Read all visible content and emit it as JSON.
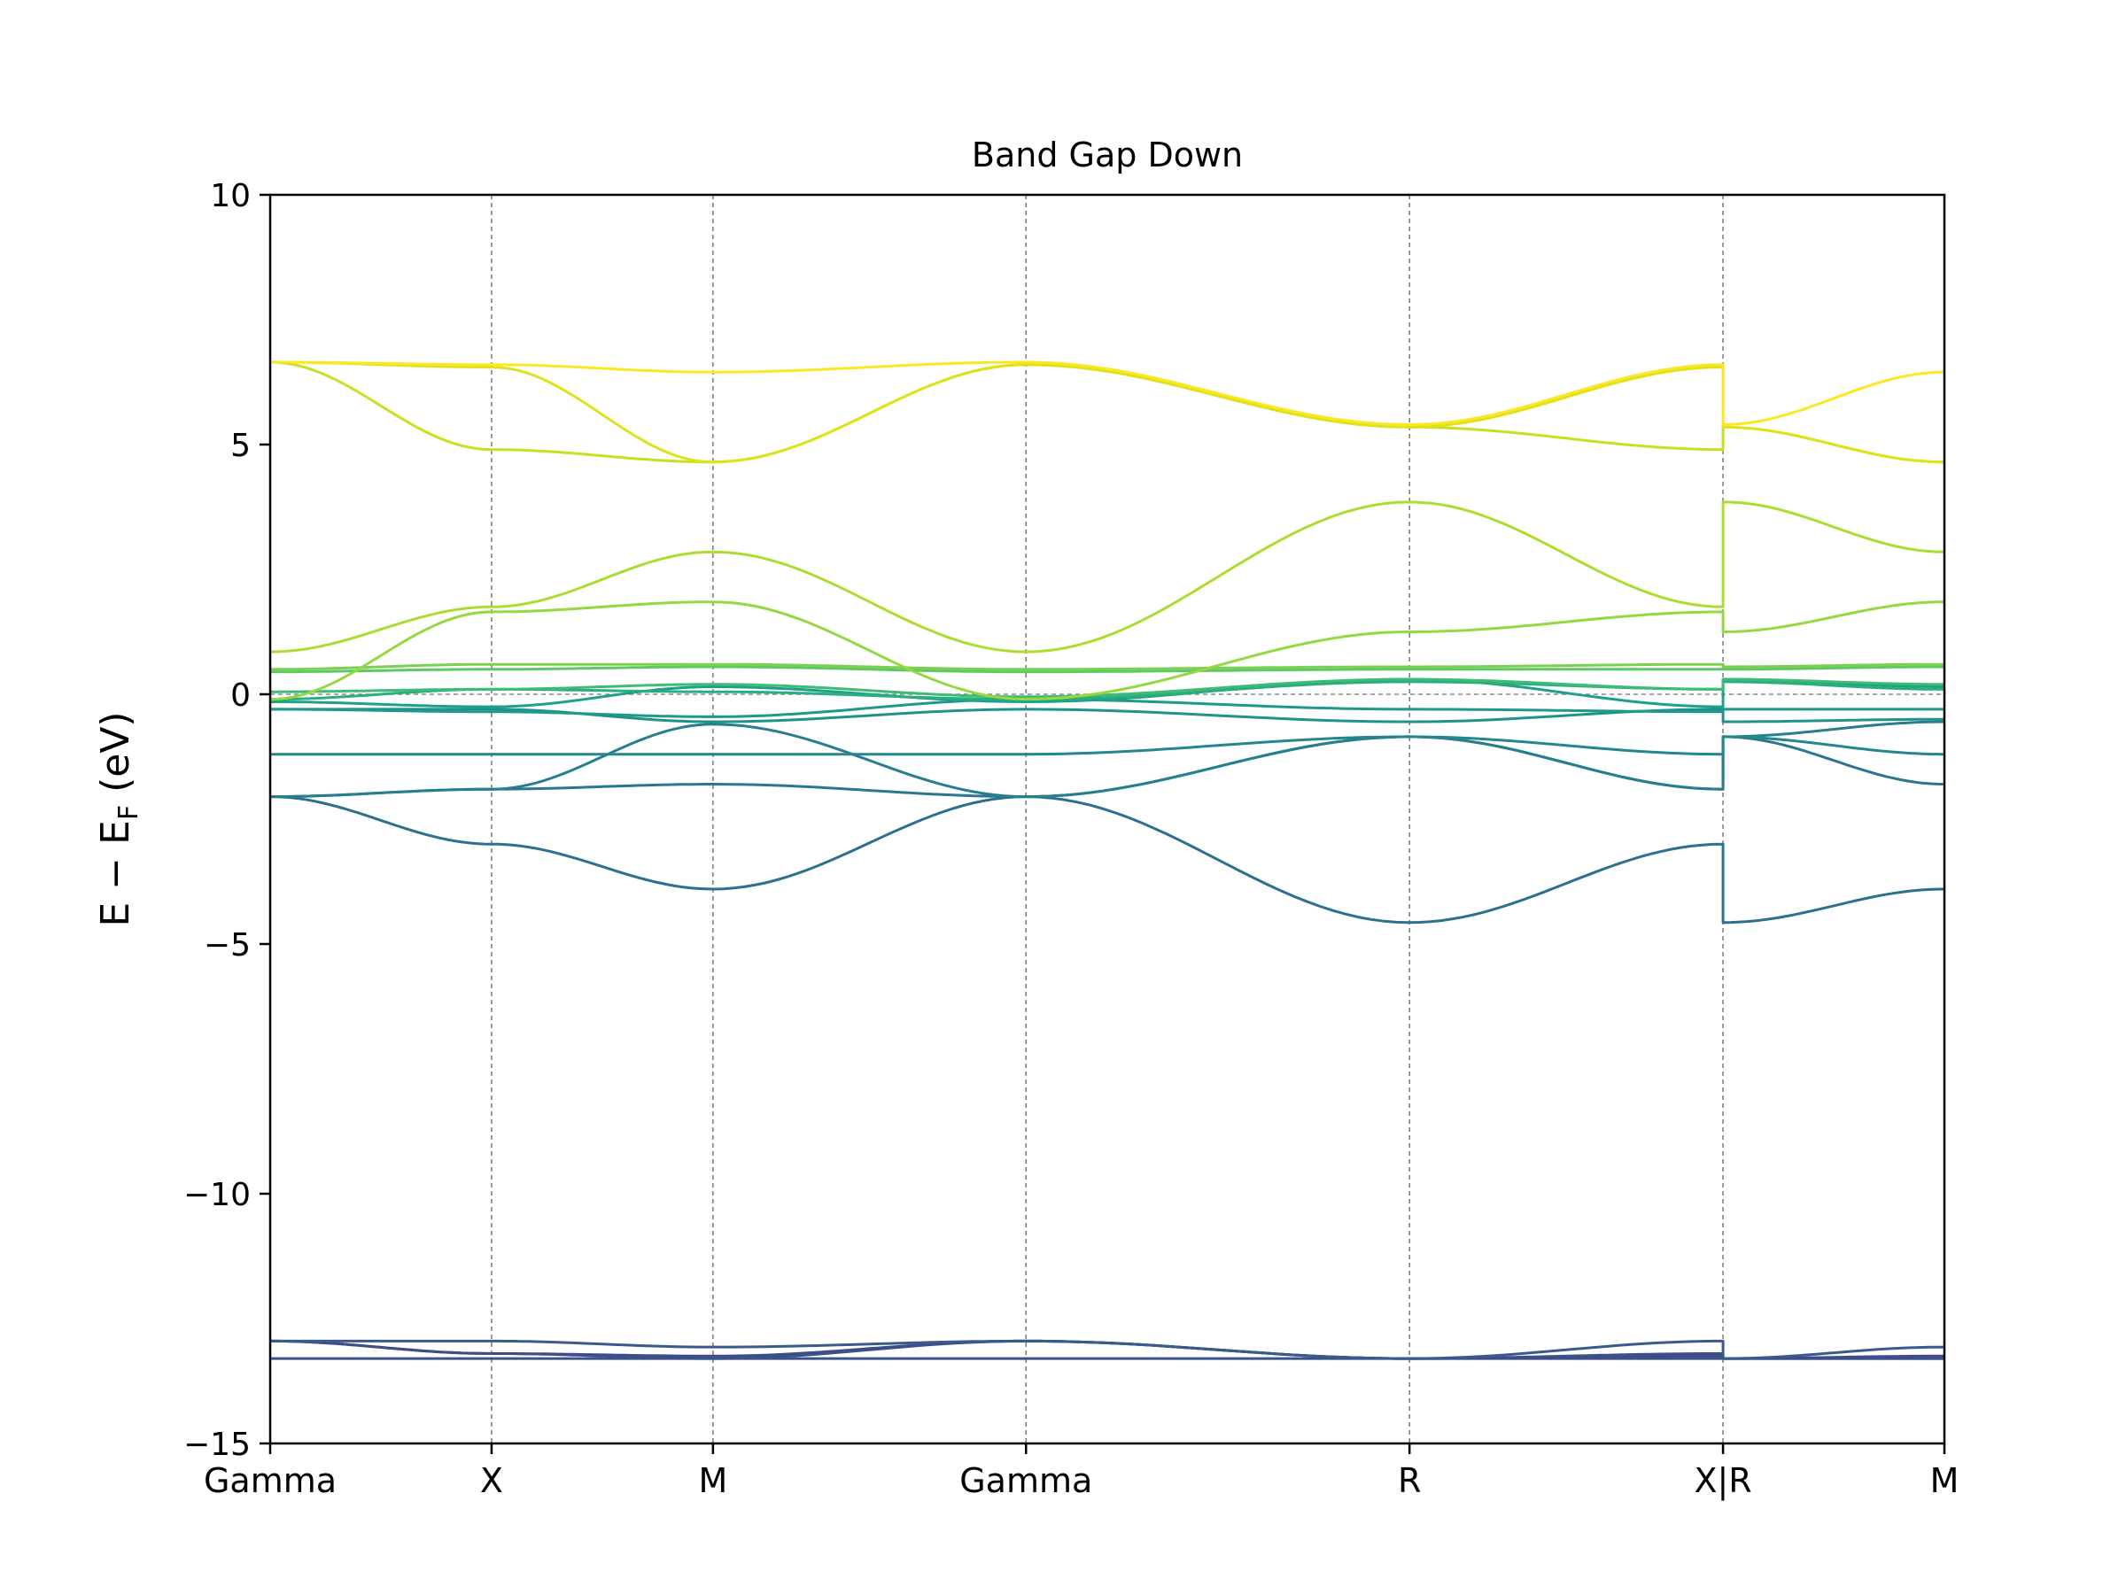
{
  "chart_data": {
    "type": "line",
    "title": "Band Gap Down",
    "ylabel_main": "E − E",
    "ylabel_sub": "F",
    "ylabel_unit": " (eV)",
    "ylim": [
      -15,
      10
    ],
    "yticks": [
      -15,
      -10,
      -5,
      0,
      5,
      10
    ],
    "ytick_labels": [
      "−15",
      "−10",
      "−5",
      "0",
      "5",
      "10"
    ],
    "kpoint_labels": [
      "Gamma",
      "X",
      "M",
      "Gamma",
      "R",
      "X|R",
      "M"
    ],
    "kpoint_x": [
      0,
      0.5,
      1.0,
      1.707,
      2.573,
      3.281,
      3.781
    ],
    "fermi_level": 0,
    "colormap": "viridis",
    "grid": false,
    "series": [
      {
        "color": "#3b528b",
        "points": [
          [
            0,
            -13.3
          ],
          [
            0.5,
            -13.3
          ],
          [
            1.0,
            -13.3
          ],
          [
            1.707,
            -13.3
          ],
          [
            2.573,
            -13.3
          ],
          [
            3.281,
            -13.3
          ],
          [
            3.281,
            -13.3
          ],
          [
            3.781,
            -13.3
          ]
        ]
      },
      {
        "color": "#3b528b",
        "points": [
          [
            0,
            -12.95
          ],
          [
            0.5,
            -13.2
          ],
          [
            1.0,
            -13.3
          ],
          [
            1.707,
            -12.95
          ],
          [
            2.573,
            -13.3
          ],
          [
            3.281,
            -13.2
          ],
          [
            3.281,
            -13.3
          ],
          [
            3.781,
            -13.3
          ]
        ]
      },
      {
        "color": "#3e4c8a",
        "points": [
          [
            0,
            -12.95
          ],
          [
            0.5,
            -13.2
          ],
          [
            1.0,
            -13.25
          ],
          [
            1.707,
            -12.95
          ],
          [
            2.573,
            -13.3
          ],
          [
            3.281,
            -13.25
          ],
          [
            3.281,
            -13.3
          ],
          [
            3.781,
            -13.25
          ]
        ]
      },
      {
        "color": "#3b5a8c",
        "points": [
          [
            0,
            -12.95
          ],
          [
            0.5,
            -12.95
          ],
          [
            1.0,
            -13.07
          ],
          [
            1.707,
            -12.95
          ],
          [
            2.573,
            -13.3
          ],
          [
            3.281,
            -12.95
          ],
          [
            3.281,
            -13.3
          ],
          [
            3.781,
            -13.07
          ]
        ]
      },
      {
        "color": "#2c6f8e",
        "points": [
          [
            0,
            -2.05
          ],
          [
            0.5,
            -3.0
          ],
          [
            1.0,
            -3.9
          ],
          [
            1.707,
            -2.05
          ],
          [
            2.573,
            -4.57
          ],
          [
            3.281,
            -3.0
          ],
          [
            3.281,
            -4.57
          ],
          [
            3.781,
            -3.9
          ]
        ]
      },
      {
        "color": "#2a768e",
        "points": [
          [
            0,
            -2.05
          ],
          [
            0.5,
            -1.9
          ],
          [
            1.0,
            -1.8
          ],
          [
            1.707,
            -2.05
          ],
          [
            2.573,
            -0.85
          ],
          [
            3.281,
            -1.9
          ],
          [
            3.281,
            -0.85
          ],
          [
            3.781,
            -1.8
          ]
        ]
      },
      {
        "color": "#277f8e",
        "points": [
          [
            0,
            -2.05
          ],
          [
            0.5,
            -1.9
          ],
          [
            1.0,
            -0.6
          ],
          [
            1.707,
            -2.05
          ],
          [
            2.573,
            -0.85
          ],
          [
            3.281,
            -1.9
          ],
          [
            3.281,
            -0.85
          ],
          [
            3.781,
            -0.55
          ]
        ]
      },
      {
        "color": "#24868e",
        "points": [
          [
            0,
            -1.2
          ],
          [
            0.5,
            -1.2
          ],
          [
            1.0,
            -1.2
          ],
          [
            1.707,
            -1.2
          ],
          [
            2.573,
            -0.85
          ],
          [
            3.281,
            -1.2
          ],
          [
            3.281,
            -0.85
          ],
          [
            3.781,
            -1.2
          ]
        ]
      },
      {
        "color": "#21918c",
        "points": [
          [
            0,
            -0.3
          ],
          [
            0.5,
            -0.3
          ],
          [
            1.0,
            -0.55
          ],
          [
            1.707,
            -0.3
          ],
          [
            2.573,
            -0.55
          ],
          [
            3.281,
            -0.3
          ],
          [
            3.281,
            -0.55
          ],
          [
            3.781,
            -0.5
          ]
        ]
      },
      {
        "color": "#1f998a",
        "points": [
          [
            0,
            -0.3
          ],
          [
            0.5,
            -0.35
          ],
          [
            1.0,
            -0.45
          ],
          [
            1.707,
            -0.1
          ],
          [
            2.573,
            -0.3
          ],
          [
            3.281,
            -0.35
          ],
          [
            3.281,
            -0.3
          ],
          [
            3.781,
            -0.3
          ]
        ]
      },
      {
        "color": "#1fa088",
        "points": [
          [
            0,
            -0.15
          ],
          [
            0.5,
            -0.25
          ],
          [
            1.0,
            0.15
          ],
          [
            1.707,
            -0.15
          ],
          [
            2.573,
            0.3
          ],
          [
            3.281,
            -0.25
          ],
          [
            3.281,
            0.3
          ],
          [
            3.781,
            0.15
          ]
        ]
      },
      {
        "color": "#28ae80",
        "points": [
          [
            0,
            -0.1
          ],
          [
            0.5,
            0.1
          ],
          [
            1.0,
            0.05
          ],
          [
            1.707,
            -0.1
          ],
          [
            2.573,
            0.25
          ],
          [
            3.281,
            0.1
          ],
          [
            3.281,
            0.25
          ],
          [
            3.781,
            0.1
          ]
        ]
      },
      {
        "color": "#3fbc73",
        "points": [
          [
            0,
            0.05
          ],
          [
            0.5,
            0.1
          ],
          [
            1.0,
            0.2
          ],
          [
            1.707,
            -0.05
          ],
          [
            2.573,
            0.3
          ],
          [
            3.281,
            0.1
          ],
          [
            3.281,
            0.3
          ],
          [
            3.781,
            0.2
          ]
        ]
      },
      {
        "color": "#5ec962",
        "points": [
          [
            0,
            0.45
          ],
          [
            0.5,
            0.5
          ],
          [
            1.0,
            0.55
          ],
          [
            1.707,
            0.45
          ],
          [
            2.573,
            0.5
          ],
          [
            3.281,
            0.5
          ],
          [
            3.281,
            0.5
          ],
          [
            3.781,
            0.55
          ]
        ]
      },
      {
        "color": "#7ad151",
        "points": [
          [
            0,
            0.5
          ],
          [
            0.5,
            0.6
          ],
          [
            1.0,
            0.6
          ],
          [
            1.707,
            0.5
          ],
          [
            2.573,
            0.55
          ],
          [
            3.281,
            0.6
          ],
          [
            3.281,
            0.55
          ],
          [
            3.781,
            0.6
          ]
        ]
      },
      {
        "color": "#95d840",
        "points": [
          [
            0,
            -0.1
          ],
          [
            0.5,
            1.65
          ],
          [
            1.0,
            1.85
          ],
          [
            1.707,
            -0.1
          ],
          [
            2.573,
            1.25
          ],
          [
            3.281,
            1.65
          ],
          [
            3.281,
            1.25
          ],
          [
            3.781,
            1.85
          ]
        ]
      },
      {
        "color": "#addc30",
        "points": [
          [
            0,
            0.85
          ],
          [
            0.5,
            1.75
          ],
          [
            1.0,
            2.85
          ],
          [
            1.707,
            0.85
          ],
          [
            2.573,
            3.85
          ],
          [
            3.281,
            1.75
          ],
          [
            3.281,
            3.85
          ],
          [
            3.781,
            2.85
          ]
        ]
      },
      {
        "color": "#c8e020",
        "points": [
          [
            0,
            6.65
          ],
          [
            0.5,
            4.9
          ],
          [
            1.0,
            4.65
          ],
          [
            1.707,
            6.6
          ],
          [
            2.573,
            5.35
          ],
          [
            3.281,
            4.9
          ],
          [
            3.281,
            5.35
          ],
          [
            3.781,
            4.65
          ]
        ]
      },
      {
        "color": "#dde318",
        "points": [
          [
            0,
            6.65
          ],
          [
            0.5,
            6.55
          ],
          [
            1.0,
            4.65
          ],
          [
            1.707,
            6.6
          ],
          [
            2.573,
            5.35
          ],
          [
            3.281,
            6.55
          ],
          [
            3.281,
            5.35
          ],
          [
            3.781,
            4.65
          ]
        ]
      },
      {
        "color": "#fde725",
        "points": [
          [
            0,
            6.65
          ],
          [
            0.5,
            6.6
          ],
          [
            1.0,
            6.45
          ],
          [
            1.707,
            6.65
          ],
          [
            2.573,
            5.4
          ],
          [
            3.281,
            6.6
          ],
          [
            3.281,
            5.4
          ],
          [
            3.781,
            6.45
          ]
        ]
      }
    ]
  }
}
